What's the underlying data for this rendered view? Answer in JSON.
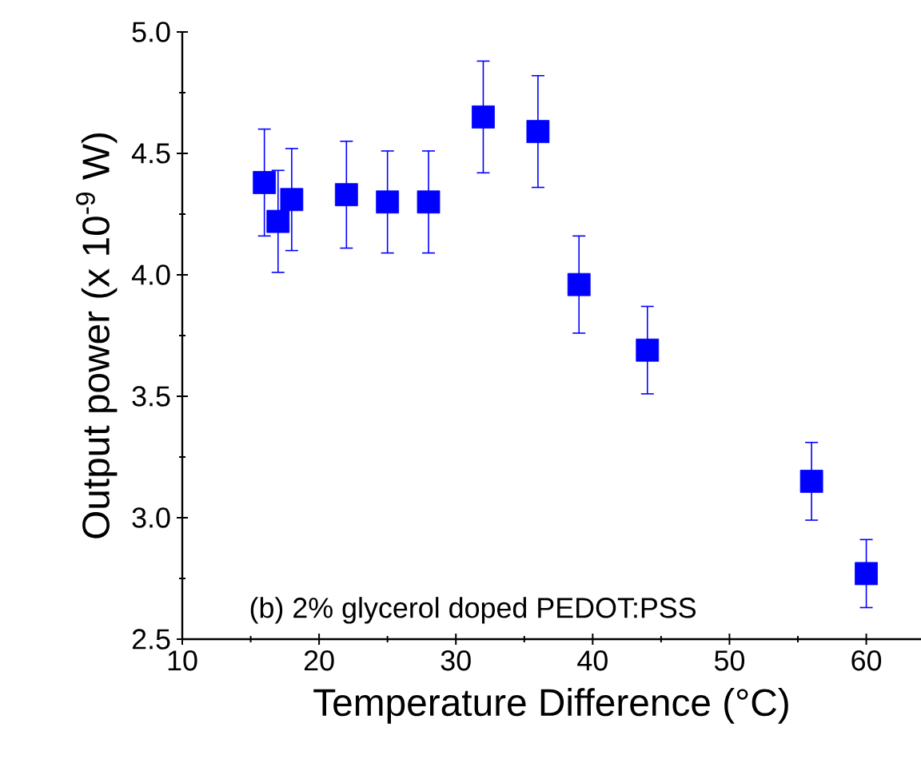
{
  "chart_data": {
    "type": "scatter",
    "xlabel": "Temperature Difference (°C)",
    "ylabel": "Output power (x 10$^{-9}$ W)",
    "annotations": [
      "(b) 2% glycerol doped PEDOT:PSS"
    ],
    "x": [
      16,
      17,
      18,
      22,
      25,
      28,
      32,
      36,
      39,
      44,
      56,
      60
    ],
    "values": [
      4.38,
      4.22,
      4.31,
      4.33,
      4.3,
      4.3,
      4.65,
      4.59,
      3.96,
      3.69,
      3.15,
      2.77
    ],
    "errors": [
      0.22,
      0.21,
      0.21,
      0.22,
      0.21,
      0.21,
      0.23,
      0.23,
      0.2,
      0.18,
      0.16,
      0.14
    ],
    "color": "#0000ff",
    "marker": "square",
    "xlim": [
      10,
      64
    ],
    "ylim": [
      2.5,
      5.0
    ],
    "xticks": [
      10,
      20,
      30,
      40,
      50,
      60
    ],
    "yticks": [
      2.5,
      {
        "value": 3,
        "label": "3.0"
      },
      3.5,
      {
        "value": 4,
        "label": "4.0"
      },
      4.5,
      {
        "value": 5,
        "label": "5.0"
      }
    ]
  }
}
